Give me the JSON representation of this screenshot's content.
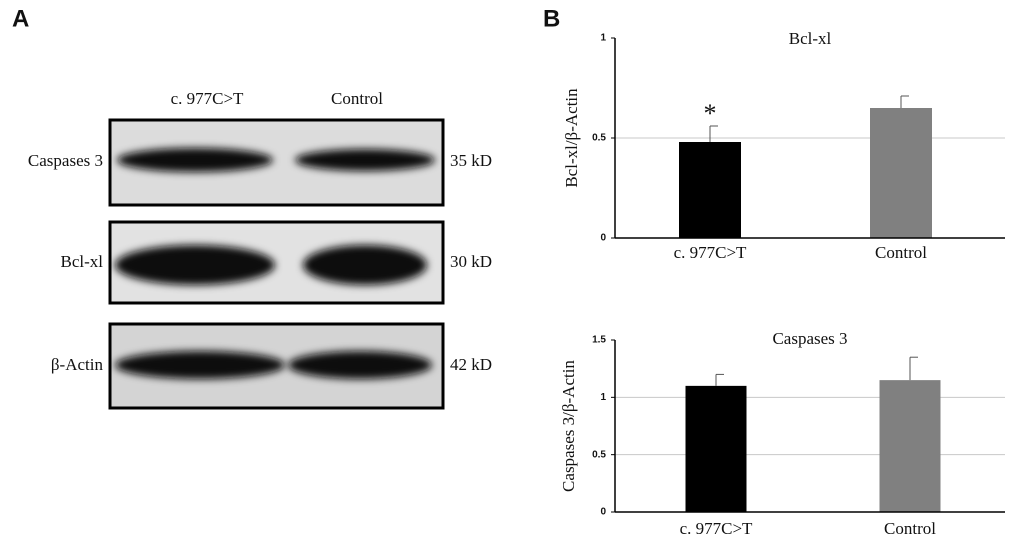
{
  "panel_labels": [
    "A",
    "B"
  ],
  "blot": {
    "columns": [
      "c. 977C>T",
      "Control"
    ],
    "rows": [
      {
        "label": "Caspases 3",
        "size": "35 kD"
      },
      {
        "label": "Bcl-xl",
        "size": "30 kD"
      },
      {
        "label": "β-Actin",
        "size": "42 kD"
      }
    ]
  },
  "chart_data": [
    {
      "type": "bar",
      "title": "Bcl-xl",
      "y_label": "Bcl-xl/β-Actin",
      "categories": [
        "c. 977C>T",
        "Control"
      ],
      "values": [
        0.48,
        0.65
      ],
      "errors": [
        0.08,
        0.06
      ],
      "colors": [
        "#000000",
        "#808080"
      ],
      "ylim": [
        0,
        1
      ],
      "yticks": [
        0,
        0.5,
        1
      ],
      "grid": true,
      "annotation": "*"
    },
    {
      "type": "bar",
      "title": "Caspases 3",
      "y_label": "Caspases 3/β-Actin",
      "categories": [
        "c. 977C>T",
        "Control"
      ],
      "values": [
        1.1,
        1.15
      ],
      "errors": [
        0.1,
        0.2
      ],
      "colors": [
        "#000000",
        "#808080"
      ],
      "ylim": [
        0,
        1.5
      ],
      "yticks": [
        0,
        0.5,
        1,
        1.5
      ],
      "grid": true
    }
  ]
}
